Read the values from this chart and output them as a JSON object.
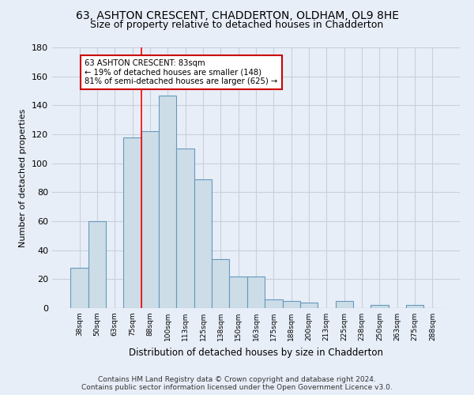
{
  "title1": "63, ASHTON CRESCENT, CHADDERTON, OLDHAM, OL9 8HE",
  "title2": "Size of property relative to detached houses in Chadderton",
  "xlabel": "Distribution of detached houses by size in Chadderton",
  "ylabel": "Number of detached properties",
  "footer1": "Contains HM Land Registry data © Crown copyright and database right 2024.",
  "footer2": "Contains public sector information licensed under the Open Government Licence v3.0.",
  "categories": [
    "38sqm",
    "50sqm",
    "63sqm",
    "75sqm",
    "88sqm",
    "100sqm",
    "113sqm",
    "125sqm",
    "138sqm",
    "150sqm",
    "163sqm",
    "175sqm",
    "188sqm",
    "200sqm",
    "213sqm",
    "225sqm",
    "238sqm",
    "250sqm",
    "263sqm",
    "275sqm",
    "288sqm"
  ],
  "values": [
    28,
    60,
    0,
    118,
    122,
    147,
    110,
    89,
    34,
    22,
    22,
    6,
    5,
    4,
    0,
    5,
    0,
    2,
    0,
    2,
    0
  ],
  "bar_color": "#ccdde8",
  "bar_edge_color": "#6699bb",
  "annotation_line1": "63 ASHTON CRESCENT: 83sqm",
  "annotation_line2": "← 19% of detached houses are smaller (148)",
  "annotation_line3": "81% of semi-detached houses are larger (625) →",
  "annotation_box_color": "#ffffff",
  "annotation_box_edge": "#cc0000",
  "grid_color": "#c8d0dc",
  "bg_color": "#e8eef8",
  "ylim": [
    0,
    180
  ],
  "yticks": [
    0,
    20,
    40,
    60,
    80,
    100,
    120,
    140,
    160,
    180
  ],
  "red_line_index": 4
}
